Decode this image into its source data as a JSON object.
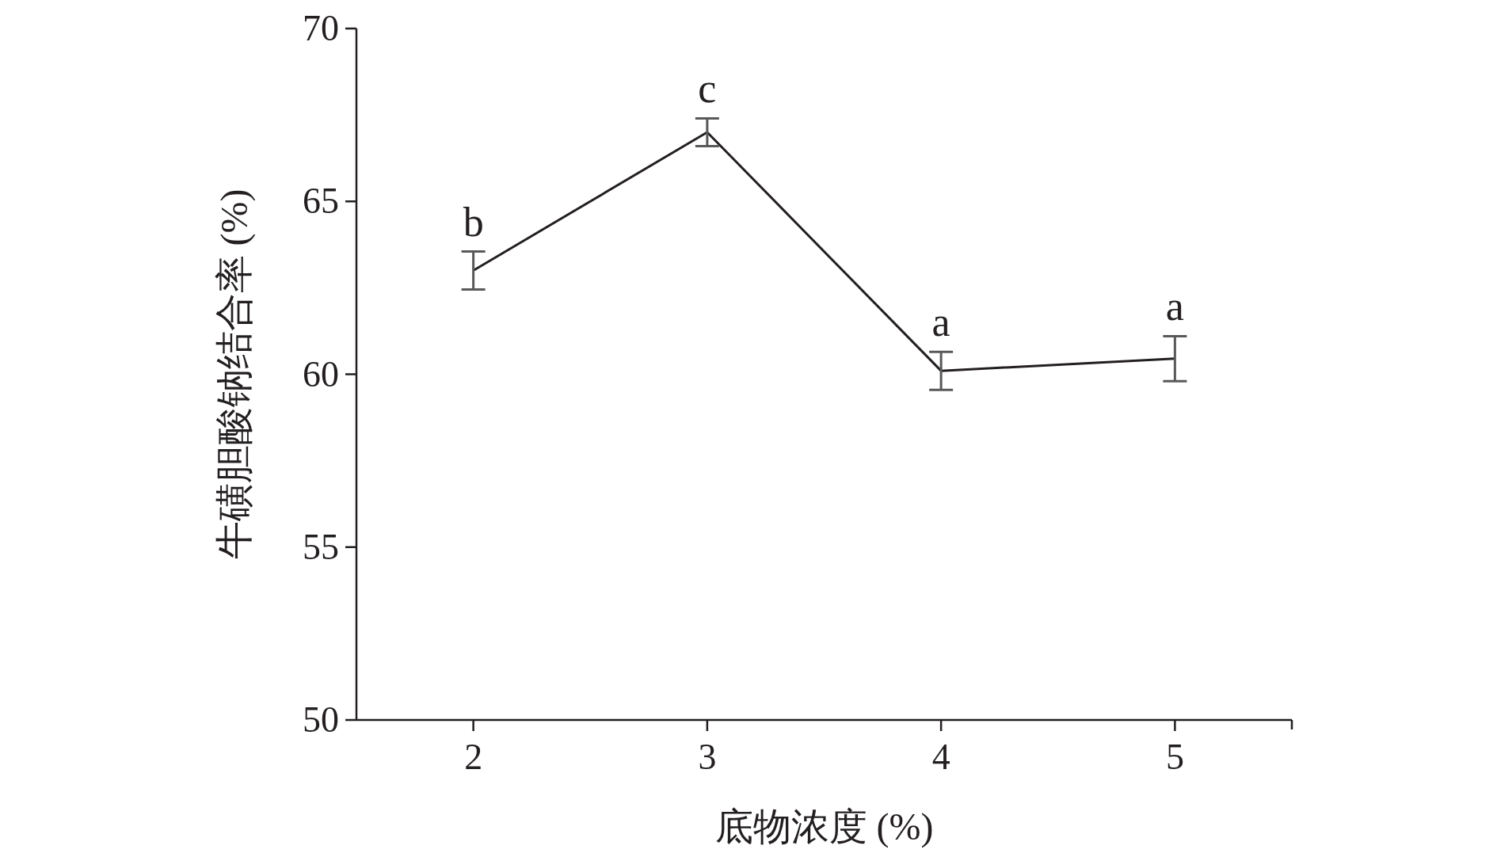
{
  "chart_data": {
    "type": "line",
    "xlabel": "底物浓度 (%)",
    "ylabel": "牛磺胆酸钠结合率 (%)",
    "x": [
      2,
      3,
      4,
      5
    ],
    "series": [
      {
        "color": "#231f20",
        "values": [
          63.0,
          67.0,
          60.1,
          60.45
        ],
        "errors": [
          0.55,
          0.4,
          0.55,
          0.65
        ]
      }
    ],
    "xlim": [
      1.5,
      5.5
    ],
    "xticks": [
      2,
      3,
      4,
      5
    ],
    "ylim": [
      50,
      70
    ],
    "yticks": [
      50,
      55,
      60,
      65,
      70
    ],
    "grid": false,
    "marker": "none",
    "line_style": "solid",
    "annotations": [
      {
        "text": "b",
        "x": 2,
        "y": 63.55
      },
      {
        "text": "c",
        "x": 3,
        "y": 67.4
      },
      {
        "text": "a",
        "x": 4,
        "y": 60.65
      },
      {
        "text": "a",
        "x": 5,
        "y": 61.1
      }
    ]
  }
}
